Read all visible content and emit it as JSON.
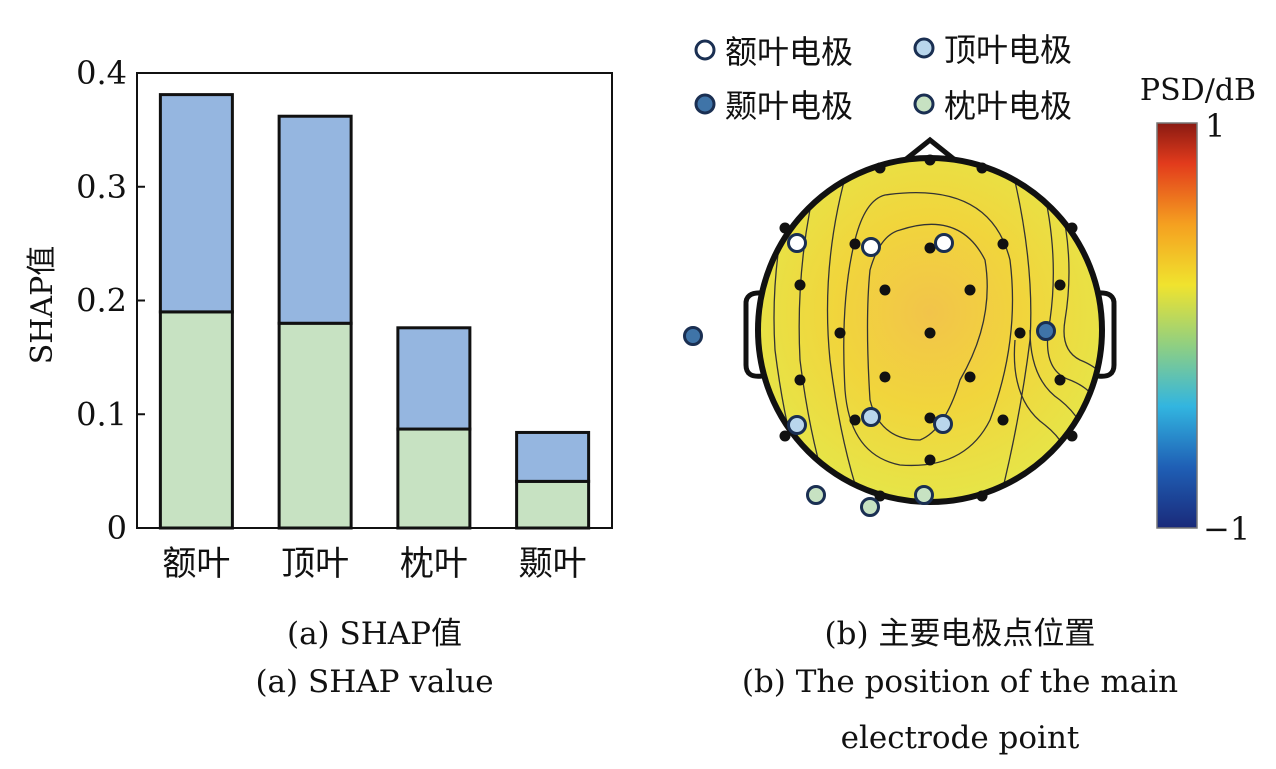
{
  "panel_a": {
    "ylabel": "SHAP值",
    "yticks": [
      "0",
      "0.1",
      "0.2",
      "0.3",
      "0.4"
    ],
    "caption_cn": "(a) SHAP值",
    "caption_en": "(a) SHAP value"
  },
  "panel_b": {
    "legend": [
      "额叶电极",
      "顶叶电极",
      "颞叶电极",
      "枕叶电极"
    ],
    "colorbar_title": "PSD/dB",
    "colorbar_max": "1",
    "colorbar_min": "−1",
    "caption_cn": "(b) 主要电极点位置",
    "caption_en_1": "(b) The position of the main",
    "caption_en_2": "electrode point"
  },
  "colors": {
    "bar_top": "#95b6e0",
    "bar_bottom": "#c7e2c2",
    "frontal": "#ffffff",
    "parietal": "#b9d6ec",
    "temporal": "#3f74a8",
    "occipital": "#c7e2c2",
    "scalp": "#f1dc3a"
  },
  "chart_data": {
    "type": "bar",
    "stacked": true,
    "categories": [
      "额叶",
      "顶叶",
      "枕叶",
      "颞叶"
    ],
    "series": [
      {
        "values": [
          0.19,
          0.18,
          0.087,
          0.041
        ]
      },
      {
        "values": [
          0.191,
          0.182,
          0.089,
          0.043
        ]
      }
    ],
    "totals": [
      0.381,
      0.362,
      0.176,
      0.084
    ],
    "ylabel": "SHAP值",
    "ylim": [
      0,
      0.4
    ],
    "yticks": [
      0,
      0.1,
      0.2,
      0.3,
      0.4
    ],
    "grid": false
  }
}
